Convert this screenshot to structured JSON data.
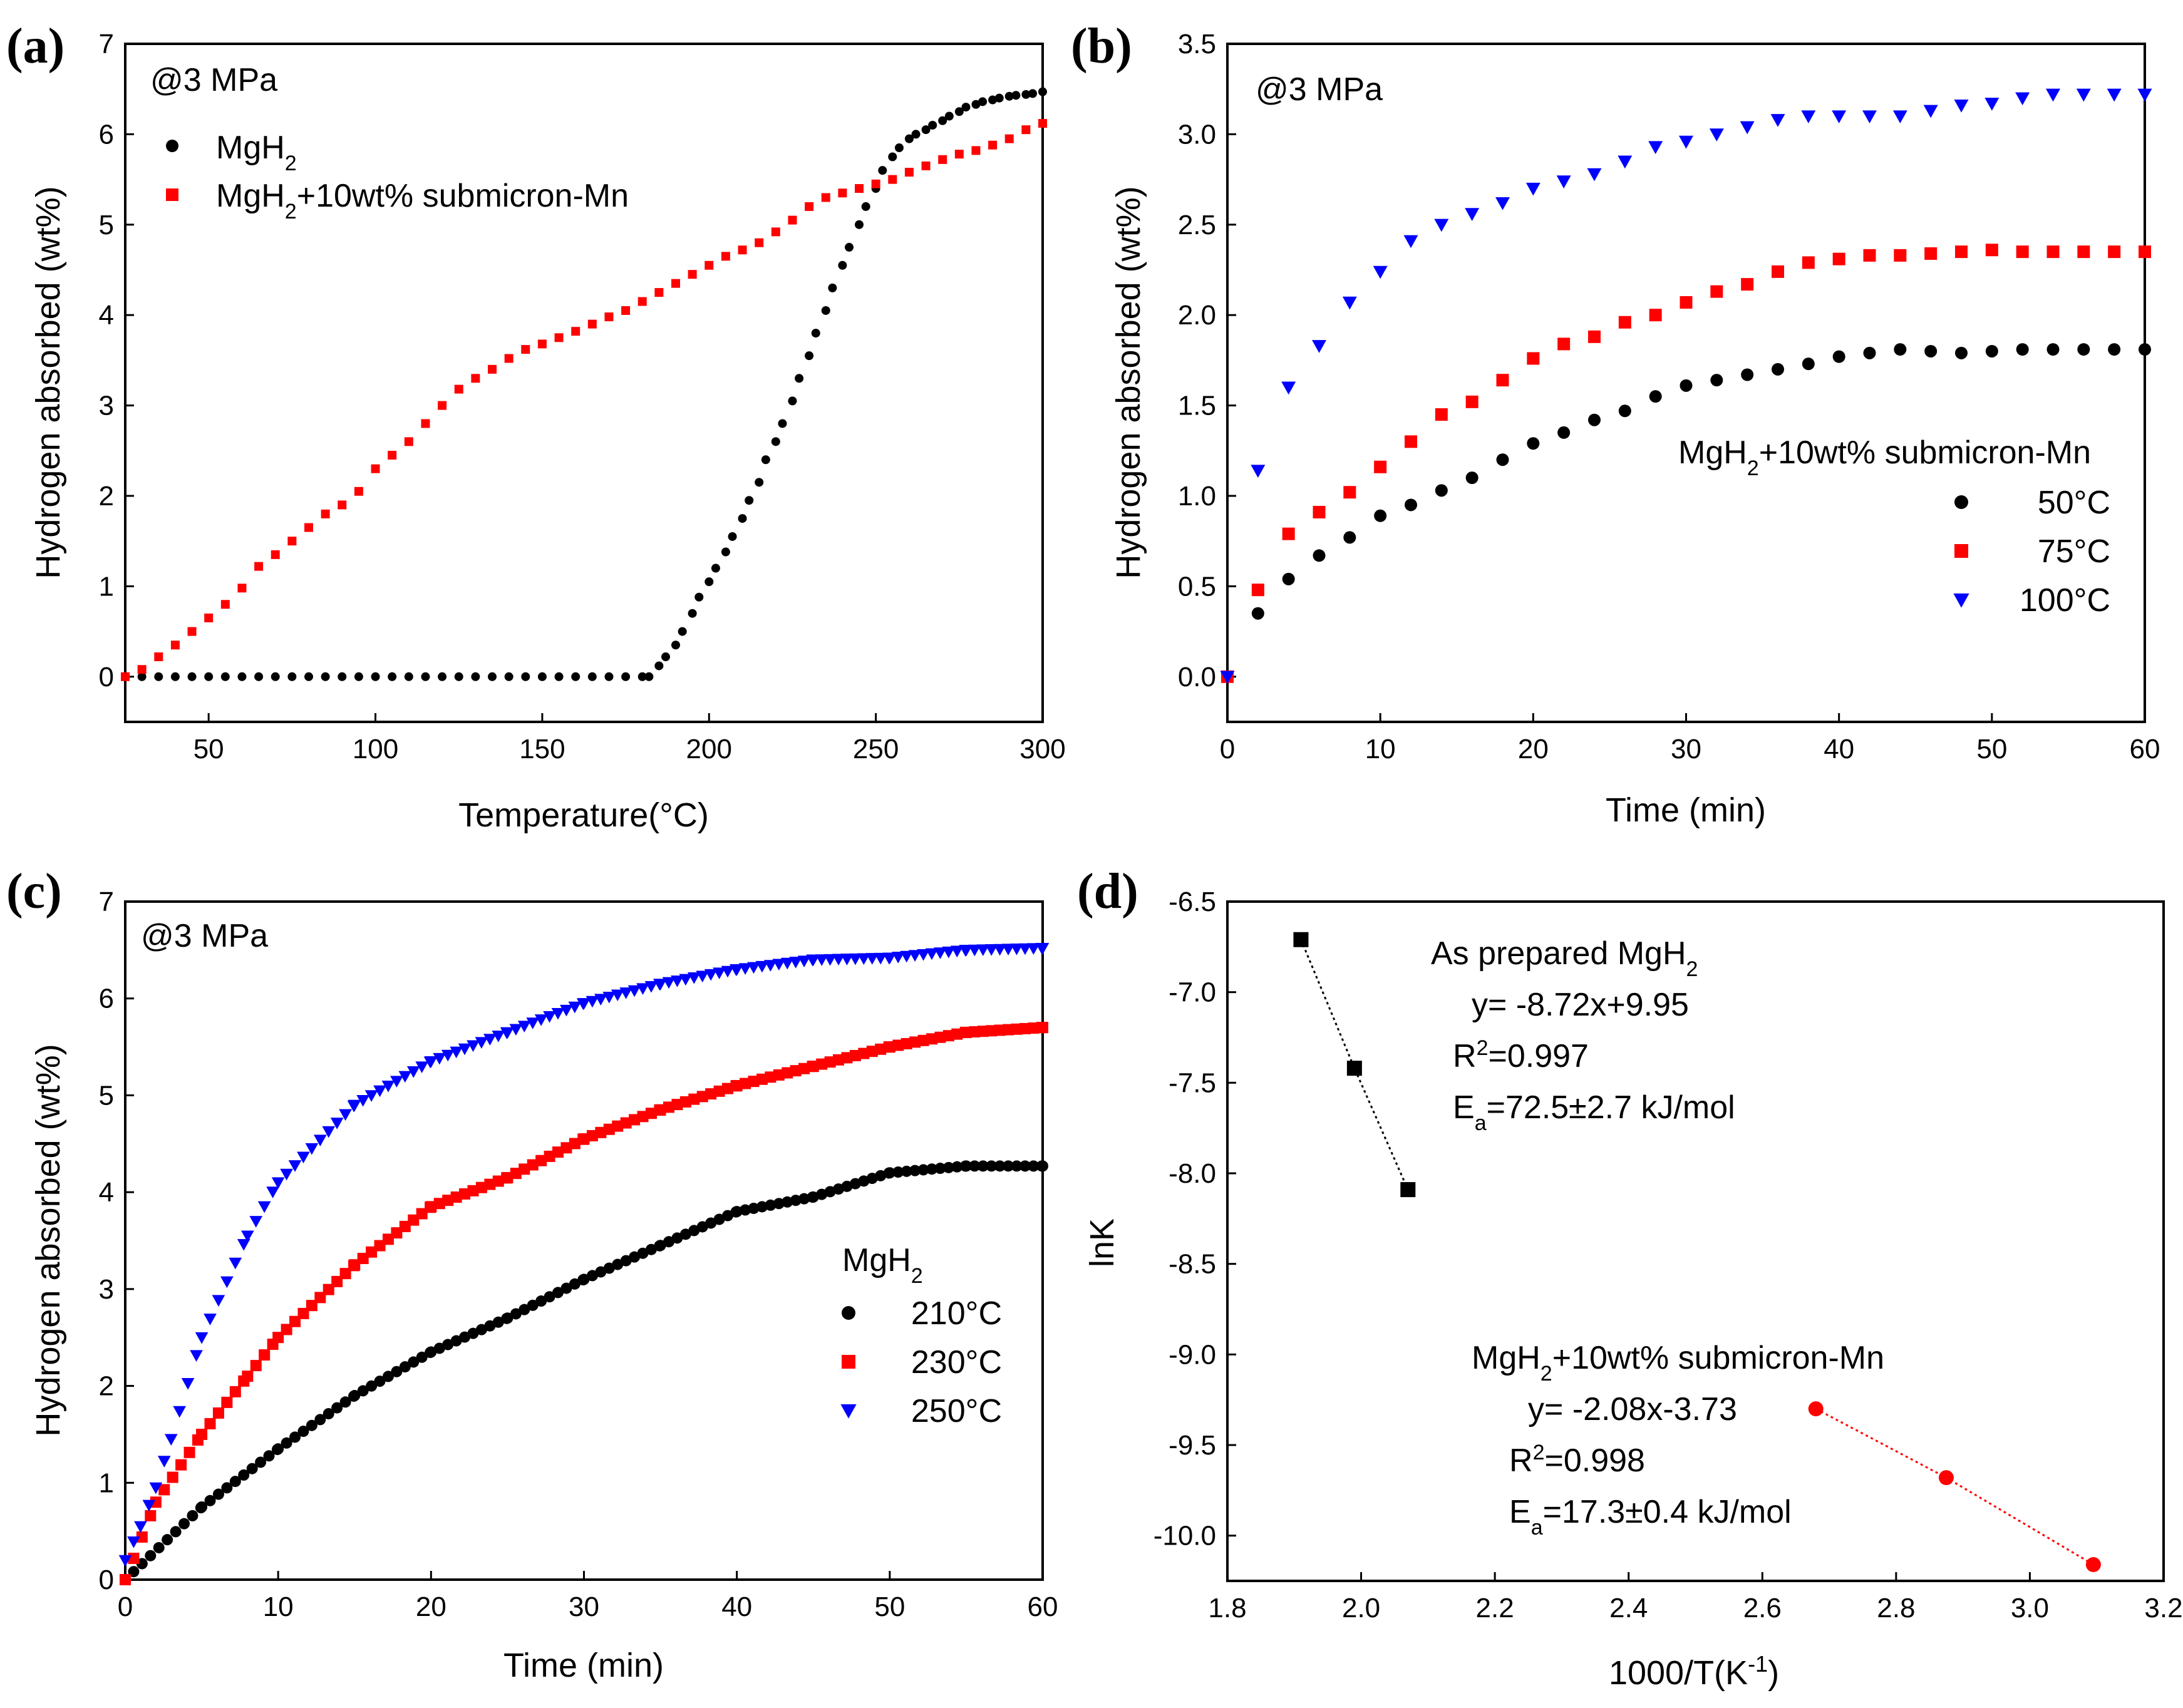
{
  "colors": {
    "black": "#000000",
    "red": "#ff0000",
    "blue": "#0000ff"
  },
  "chart_data": [
    {
      "id": "a",
      "type": "scatter",
      "panel_label": "(a)",
      "annotation": "@3 MPa",
      "xlabel": "Temperature(°C)",
      "ylabel": "Hydrogen absorbed (wt%)",
      "xlim": [
        25,
        300
      ],
      "ylim": [
        -0.5,
        7
      ],
      "xticks": [
        50,
        100,
        150,
        200,
        250,
        300
      ],
      "yticks": [
        0,
        1,
        2,
        3,
        4,
        5,
        6,
        7
      ],
      "x_tick_labels": [
        "50",
        "100",
        "150",
        "200",
        "250",
        "300"
      ],
      "y_tick_labels": [
        "0",
        "1",
        "2",
        "3",
        "4",
        "5",
        "6",
        "7"
      ],
      "legend": [
        {
          "label": "MgH",
          "sub": "2",
          "tail": "",
          "marker": "circle",
          "color": "#000000"
        },
        {
          "label": "MgH",
          "sub": "2",
          "tail": "+10wt% submicron-Mn",
          "marker": "square",
          "color": "#ff0000"
        }
      ],
      "series": [
        {
          "name": "MgH2",
          "marker": "circle",
          "color": "#000000",
          "x": [
            25,
            30,
            35,
            40,
            45,
            50,
            55,
            60,
            65,
            70,
            75,
            80,
            85,
            90,
            95,
            100,
            105,
            110,
            115,
            120,
            125,
            130,
            135,
            140,
            145,
            150,
            155,
            160,
            165,
            170,
            175,
            180,
            182,
            185,
            187,
            190,
            192,
            195,
            197,
            200,
            202,
            205,
            207,
            210,
            212,
            215,
            217,
            220,
            222,
            225,
            227,
            230,
            232,
            235,
            237,
            240,
            242,
            245,
            247,
            250,
            252,
            255,
            257,
            260,
            262,
            265,
            267,
            270,
            272,
            275,
            277,
            280,
            282,
            285,
            287,
            290,
            292,
            295,
            297,
            300
          ],
          "y": [
            0,
            0,
            0,
            0,
            0,
            0,
            0,
            0,
            0,
            0,
            0,
            0,
            0,
            0,
            0,
            0,
            0,
            0,
            0,
            0,
            0,
            0,
            0,
            0,
            0,
            0,
            0,
            0,
            0,
            0,
            0,
            0,
            0,
            0.12,
            0.22,
            0.35,
            0.5,
            0.7,
            0.88,
            1.05,
            1.2,
            1.38,
            1.55,
            1.75,
            1.95,
            2.15,
            2.4,
            2.6,
            2.8,
            3.05,
            3.3,
            3.55,
            3.8,
            4.05,
            4.3,
            4.55,
            4.75,
            5.0,
            5.2,
            5.4,
            5.6,
            5.75,
            5.85,
            5.95,
            6.0,
            6.05,
            6.1,
            6.15,
            6.2,
            6.25,
            6.3,
            6.33,
            6.36,
            6.38,
            6.4,
            6.42,
            6.43,
            6.44,
            6.45,
            6.47
          ]
        },
        {
          "name": "MgH2+10wt% submicron-Mn",
          "marker": "square",
          "color": "#ff0000",
          "x": [
            25,
            30,
            35,
            40,
            45,
            50,
            55,
            60,
            65,
            70,
            75,
            80,
            85,
            90,
            95,
            100,
            105,
            110,
            115,
            120,
            125,
            130,
            135,
            140,
            145,
            150,
            155,
            160,
            165,
            170,
            175,
            180,
            185,
            190,
            195,
            200,
            205,
            210,
            215,
            220,
            225,
            230,
            235,
            240,
            245,
            250,
            255,
            260,
            265,
            270,
            275,
            280,
            285,
            290,
            295,
            300
          ],
          "y": [
            0,
            0.08,
            0.22,
            0.35,
            0.5,
            0.65,
            0.8,
            0.98,
            1.22,
            1.35,
            1.5,
            1.65,
            1.8,
            1.9,
            2.05,
            2.3,
            2.45,
            2.6,
            2.8,
            3.0,
            3.18,
            3.3,
            3.4,
            3.52,
            3.62,
            3.68,
            3.75,
            3.82,
            3.9,
            3.98,
            4.05,
            4.15,
            4.25,
            4.35,
            4.45,
            4.55,
            4.65,
            4.72,
            4.8,
            4.92,
            5.05,
            5.2,
            5.3,
            5.35,
            5.4,
            5.45,
            5.5,
            5.58,
            5.65,
            5.72,
            5.78,
            5.82,
            5.88,
            5.95,
            6.05,
            6.12
          ]
        }
      ]
    },
    {
      "id": "b",
      "type": "scatter",
      "panel_label": "(b)",
      "annotation": "@3 MPa",
      "xlabel": "Time (min)",
      "ylabel": "Hydrogen absorbed (wt%)",
      "xlim": [
        0,
        60
      ],
      "ylim": [
        -0.25,
        3.5
      ],
      "xticks": [
        0,
        10,
        20,
        30,
        40,
        50,
        60
      ],
      "yticks": [
        0.0,
        0.5,
        1.0,
        1.5,
        2.0,
        2.5,
        3.0,
        3.5
      ],
      "x_tick_labels": [
        "0",
        "10",
        "20",
        "30",
        "40",
        "50",
        "60"
      ],
      "y_tick_labels": [
        "0.0",
        "0.5",
        "1.0",
        "1.5",
        "2.0",
        "2.5",
        "3.0",
        "3.5"
      ],
      "legend_title": {
        "label": "MgH",
        "sub": "2",
        "tail": "+10wt% submicron-Mn"
      },
      "legend": [
        {
          "label": "50°C",
          "marker": "circle",
          "color": "#000000"
        },
        {
          "label": "75°C",
          "marker": "square",
          "color": "#ff0000"
        },
        {
          "label": "100°C",
          "marker": "triangle-down",
          "color": "#0000ff"
        }
      ],
      "series": [
        {
          "name": "50°C",
          "marker": "circle",
          "color": "#000000",
          "x": [
            0,
            2,
            4,
            6,
            8,
            10,
            12,
            14,
            16,
            18,
            20,
            22,
            24,
            26,
            28,
            30,
            32,
            34,
            36,
            38,
            40,
            42,
            44,
            46,
            48,
            50,
            52,
            54,
            56,
            58,
            60
          ],
          "y": [
            0,
            0.35,
            0.54,
            0.67,
            0.77,
            0.89,
            0.95,
            1.03,
            1.1,
            1.2,
            1.29,
            1.35,
            1.42,
            1.47,
            1.55,
            1.61,
            1.64,
            1.67,
            1.7,
            1.73,
            1.77,
            1.79,
            1.81,
            1.8,
            1.79,
            1.8,
            1.81,
            1.81,
            1.81,
            1.81,
            1.81
          ]
        },
        {
          "name": "75°C",
          "marker": "square",
          "color": "#ff0000",
          "x": [
            0,
            2,
            4,
            6,
            8,
            10,
            12,
            14,
            16,
            18,
            20,
            22,
            24,
            26,
            28,
            30,
            32,
            34,
            36,
            38,
            40,
            42,
            44,
            46,
            48,
            50,
            52,
            54,
            56,
            58,
            60
          ],
          "y": [
            0,
            0.48,
            0.79,
            0.91,
            1.02,
            1.16,
            1.3,
            1.45,
            1.52,
            1.64,
            1.76,
            1.84,
            1.88,
            1.96,
            2.0,
            2.07,
            2.13,
            2.17,
            2.24,
            2.29,
            2.31,
            2.33,
            2.33,
            2.34,
            2.35,
            2.36,
            2.35,
            2.35,
            2.35,
            2.35,
            2.35
          ]
        },
        {
          "name": "100°C",
          "marker": "triangle-down",
          "color": "#0000ff",
          "x": [
            0,
            2,
            4,
            6,
            8,
            10,
            12,
            14,
            16,
            18,
            20,
            22,
            24,
            26,
            28,
            30,
            32,
            34,
            36,
            38,
            40,
            42,
            44,
            46,
            48,
            50,
            52,
            54,
            56,
            58,
            60
          ],
          "y": [
            0,
            1.14,
            1.6,
            1.83,
            2.07,
            2.24,
            2.41,
            2.5,
            2.56,
            2.62,
            2.7,
            2.74,
            2.78,
            2.85,
            2.93,
            2.96,
            3.0,
            3.04,
            3.08,
            3.1,
            3.1,
            3.1,
            3.1,
            3.13,
            3.16,
            3.17,
            3.2,
            3.22,
            3.22,
            3.22,
            3.22
          ]
        }
      ]
    },
    {
      "id": "c",
      "type": "scatter",
      "panel_label": "(c)",
      "annotation": "@3 MPa",
      "xlabel": "Time (min)",
      "ylabel": "Hydrogen absorbed (wt%)",
      "xlim": [
        0,
        60
      ],
      "ylim": [
        0,
        7
      ],
      "xticks": [
        0,
        10,
        20,
        30,
        40,
        50,
        60
      ],
      "yticks": [
        0,
        1,
        2,
        3,
        4,
        5,
        6,
        7
      ],
      "x_tick_labels": [
        "0",
        "10",
        "20",
        "30",
        "40",
        "50",
        "60"
      ],
      "y_tick_labels": [
        "0",
        "1",
        "2",
        "3",
        "4",
        "5",
        "6",
        "7"
      ],
      "legend_title": {
        "label": "MgH",
        "sub": "2",
        "tail": ""
      },
      "legend": [
        {
          "label": "210°C",
          "marker": "circle",
          "color": "#000000"
        },
        {
          "label": "230°C",
          "marker": "square",
          "color": "#ff0000"
        },
        {
          "label": "250°C",
          "marker": "triangle-down",
          "color": "#0000ff"
        }
      ],
      "series": [
        {
          "name": "210°C",
          "marker": "circle",
          "color": "#000000",
          "x": [
            0,
            5,
            10,
            15,
            20,
            25,
            30,
            35,
            40,
            45,
            50,
            55,
            60
          ],
          "y": [
            0,
            0.75,
            1.35,
            1.9,
            2.35,
            2.7,
            3.1,
            3.45,
            3.8,
            3.95,
            4.2,
            4.27,
            4.27
          ]
        },
        {
          "name": "230°C",
          "marker": "square",
          "color": "#ff0000",
          "x": [
            0,
            2,
            5,
            8,
            10,
            15,
            20,
            25,
            30,
            35,
            40,
            45,
            50,
            55,
            60
          ],
          "y": [
            0,
            0.8,
            1.5,
            2.1,
            2.5,
            3.25,
            3.85,
            4.15,
            4.55,
            4.85,
            5.1,
            5.3,
            5.5,
            5.65,
            5.7
          ]
        },
        {
          "name": "250°C",
          "marker": "triangle-down",
          "color": "#0000ff",
          "x": [
            0,
            1,
            2,
            3,
            5,
            8,
            10,
            15,
            20,
            25,
            30,
            35,
            40,
            45,
            50,
            55,
            60
          ],
          "y": [
            0.2,
            0.55,
            0.95,
            1.45,
            2.5,
            3.55,
            4.1,
            4.9,
            5.35,
            5.65,
            5.95,
            6.15,
            6.3,
            6.4,
            6.42,
            6.5,
            6.52
          ]
        }
      ]
    },
    {
      "id": "d",
      "type": "scatter",
      "panel_label": "(d)",
      "xlabel": "1000/T(K",
      "xlabel_sup": "-1",
      "xlabel_tail": ")",
      "ylabel": "lnK",
      "xlim": [
        1.8,
        3.2
      ],
      "ylim": [
        -10.25,
        -6.5
      ],
      "xticks": [
        1.8,
        2.0,
        2.2,
        2.4,
        2.6,
        2.8,
        3.0,
        3.2
      ],
      "yticks": [
        -6.5,
        -7.0,
        -7.5,
        -8.0,
        -8.5,
        -9.0,
        -9.5,
        -10.0
      ],
      "x_tick_labels": [
        "1.8",
        "2.0",
        "2.2",
        "2.4",
        "2.6",
        "2.8",
        "3.0",
        "3.2"
      ],
      "y_tick_labels": [
        "-6.5",
        "-7.0",
        "-7.5",
        "-8.0",
        "-8.5",
        "-9.0",
        "-9.5",
        "-10.0"
      ],
      "series": [
        {
          "name": "As prepared MgH2",
          "marker": "square",
          "color": "#000000",
          "x": [
            1.91,
            1.99,
            2.07
          ],
          "y": [
            -6.71,
            -7.42,
            -8.09
          ]
        },
        {
          "name": "MgH2+10wt% submicron-Mn",
          "marker": "circle",
          "color": "#ff0000",
          "x": [
            2.68,
            2.875,
            3.095
          ],
          "y": [
            -9.3,
            -9.68,
            -10.16
          ]
        }
      ],
      "fit_notes": [
        {
          "title_main": "As prepared MgH",
          "title_sub": "2",
          "title_tail": "",
          "eq": "y= -8.72x+9.95",
          "r_pre": "R",
          "r_sup": "2",
          "r_val": "=0.997",
          "ea_pre": "E",
          "ea_sub": "a",
          "ea_val": "=72.5±2.7 kJ/mol"
        },
        {
          "title_main": "MgH",
          "title_sub": "2",
          "title_tail": "+10wt% submicron-Mn",
          "eq": "y= -2.08x-3.73",
          "r_pre": "R",
          "r_sup": "2",
          "r_val": "=0.998",
          "ea_pre": "E",
          "ea_sub": "a",
          "ea_val": "=17.3±0.4 kJ/mol"
        }
      ]
    }
  ]
}
